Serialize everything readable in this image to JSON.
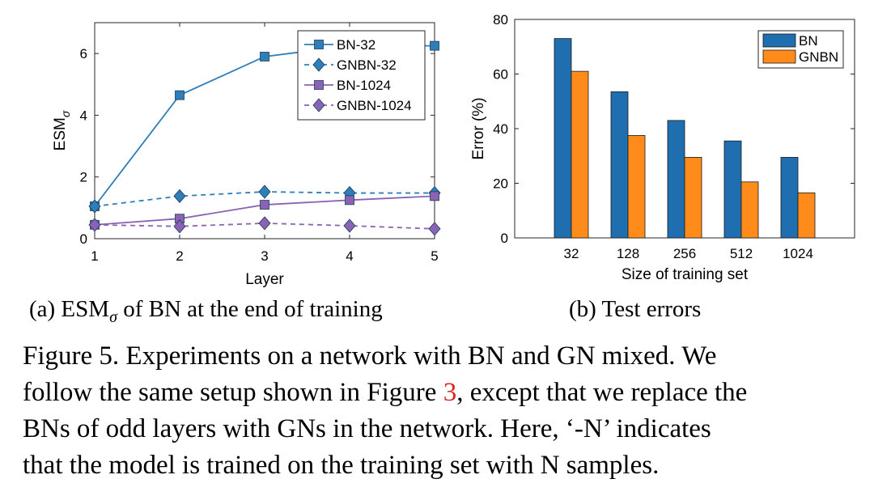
{
  "chart_data": [
    {
      "type": "line",
      "xlabel": "Layer",
      "ylabel_main": "ESM",
      "ylabel_sub": "σ",
      "x": [
        1,
        2,
        3,
        4,
        5
      ],
      "xlim": [
        1,
        5
      ],
      "ylim": [
        0,
        7
      ],
      "yticks": [
        0,
        2,
        4,
        6
      ],
      "xticks": [
        1,
        2,
        3,
        4,
        5
      ],
      "legend_position": "top-right",
      "series": [
        {
          "name": "BN-32",
          "values": [
            1.05,
            4.65,
            5.9,
            6.25,
            6.25
          ],
          "color": "#2e7eb8",
          "dash": "solid",
          "marker": "square"
        },
        {
          "name": "GNBN-32",
          "values": [
            1.05,
            1.38,
            1.52,
            1.48,
            1.48
          ],
          "color": "#2e7eb8",
          "dash": "dashed",
          "marker": "diamond"
        },
        {
          "name": "BN-1024",
          "values": [
            0.45,
            0.65,
            1.1,
            1.25,
            1.38
          ],
          "color": "#8a63b4",
          "dash": "solid",
          "marker": "square"
        },
        {
          "name": "GNBN-1024",
          "values": [
            0.45,
            0.4,
            0.5,
            0.42,
            0.32
          ],
          "color": "#8a63b4",
          "dash": "dashed",
          "marker": "diamond"
        }
      ]
    },
    {
      "type": "bar",
      "xlabel": "Size of training set",
      "ylabel": "Error (%)",
      "categories": [
        "32",
        "128",
        "256",
        "512",
        "1024"
      ],
      "ylim": [
        0,
        80
      ],
      "yticks": [
        0,
        20,
        40,
        60,
        80
      ],
      "legend_position": "top-right",
      "series": [
        {
          "name": "BN",
          "values": [
            73,
            53.5,
            43,
            35.5,
            29.5
          ],
          "color": "#1f6eb0"
        },
        {
          "name": "GNBN",
          "values": [
            61,
            37.5,
            29.5,
            20.5,
            16.5
          ],
          "color": "#ff8c1a"
        }
      ]
    }
  ],
  "subcaptions": {
    "a_prefix": "(a) ESM",
    "a_sub": "σ",
    "a_suffix": " of BN at the end of training",
    "b": "(b) Test errors"
  },
  "caption": {
    "line1": "Figure 5. Experiments on a network with BN and GN mixed. We",
    "line2_pre": "follow the same setup shown in Figure ",
    "line2_ref": "3",
    "line2_post": ", except that we replace the",
    "line3": "BNs of odd layers with GNs in the network. Here, ‘-N’ indicates",
    "line4": "that the model is trained on the training set with N samples."
  }
}
